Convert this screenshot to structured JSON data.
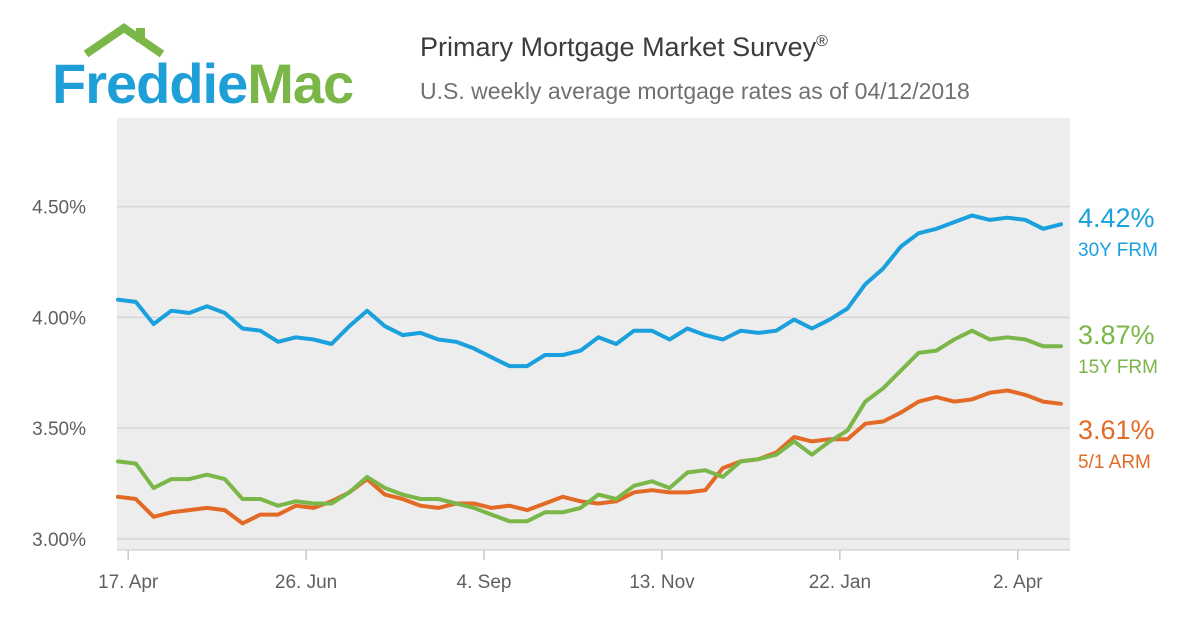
{
  "brand": {
    "logo_first": "Freddie",
    "logo_second": "Mac",
    "colors": {
      "blue": "#1e9fd8",
      "green": "#7ab648"
    }
  },
  "header": {
    "title": "Primary Mortgage Market Survey",
    "title_mark": "®",
    "subtitle": "U.S. weekly average mortgage rates as of 04/12/2018"
  },
  "chart_data": {
    "type": "line",
    "title": "Primary Mortgage Market Survey®",
    "subtitle": "U.S. weekly average mortgage rates as of 04/12/2018",
    "xlabel": "",
    "ylabel": "",
    "x_start": "2017-04-13",
    "x_step_days": 7,
    "ylim": [
      2.95,
      4.9
    ],
    "yticks": [
      3.0,
      3.5,
      4.0,
      4.5
    ],
    "ytick_labels": [
      "3.00%",
      "3.50%",
      "4.00%",
      "4.50%"
    ],
    "xtick_labels": [
      "17. Apr",
      "26. Jun",
      "4. Sep",
      "13. Nov",
      "22. Jan",
      "2. Apr"
    ],
    "xtick_dates": [
      "2017-04-17",
      "2017-06-26",
      "2017-09-04",
      "2017-11-13",
      "2018-01-22",
      "2018-04-02"
    ],
    "grid": "horizontal",
    "legend": "right-end labels",
    "series": [
      {
        "name": "30Y FRM",
        "end_value_label": "4.42%",
        "color": "#1aa0dc",
        "values": [
          4.08,
          4.07,
          3.97,
          4.03,
          4.02,
          4.05,
          4.02,
          3.95,
          3.94,
          3.89,
          3.91,
          3.9,
          3.88,
          3.96,
          4.03,
          3.96,
          3.92,
          3.93,
          3.9,
          3.89,
          3.86,
          3.82,
          3.78,
          3.78,
          3.83,
          3.83,
          3.85,
          3.91,
          3.88,
          3.94,
          3.94,
          3.9,
          3.95,
          3.92,
          3.9,
          3.94,
          3.93,
          3.94,
          3.99,
          3.95,
          3.99,
          4.04,
          4.15,
          4.22,
          4.32,
          4.38,
          4.4,
          4.43,
          4.46,
          4.44,
          4.45,
          4.44,
          4.4,
          4.42
        ]
      },
      {
        "name": "15Y FRM",
        "end_value_label": "3.87%",
        "color": "#7ab648",
        "values": [
          3.35,
          3.34,
          3.23,
          3.27,
          3.27,
          3.29,
          3.27,
          3.18,
          3.18,
          3.15,
          3.17,
          3.16,
          3.16,
          3.21,
          3.28,
          3.23,
          3.2,
          3.18,
          3.18,
          3.16,
          3.14,
          3.11,
          3.08,
          3.08,
          3.12,
          3.12,
          3.14,
          3.2,
          3.18,
          3.24,
          3.26,
          3.23,
          3.3,
          3.31,
          3.28,
          3.35,
          3.36,
          3.38,
          3.44,
          3.38,
          3.44,
          3.49,
          3.62,
          3.68,
          3.76,
          3.84,
          3.85,
          3.9,
          3.94,
          3.9,
          3.91,
          3.9,
          3.87,
          3.87
        ]
      },
      {
        "name": "5/1 ARM",
        "end_value_label": "3.61%",
        "color": "#e26a26",
        "values": [
          3.19,
          3.18,
          3.1,
          3.12,
          3.13,
          3.14,
          3.13,
          3.07,
          3.11,
          3.11,
          3.15,
          3.14,
          3.17,
          3.21,
          3.27,
          3.2,
          3.18,
          3.15,
          3.14,
          3.16,
          3.16,
          3.14,
          3.15,
          3.13,
          3.16,
          3.19,
          3.17,
          3.16,
          3.17,
          3.21,
          3.22,
          3.21,
          3.21,
          3.22,
          3.32,
          3.35,
          3.36,
          3.39,
          3.46,
          3.44,
          3.45,
          3.45,
          3.52,
          3.53,
          3.57,
          3.62,
          3.64,
          3.62,
          3.63,
          3.66,
          3.67,
          3.65,
          3.62,
          3.61
        ]
      }
    ]
  }
}
